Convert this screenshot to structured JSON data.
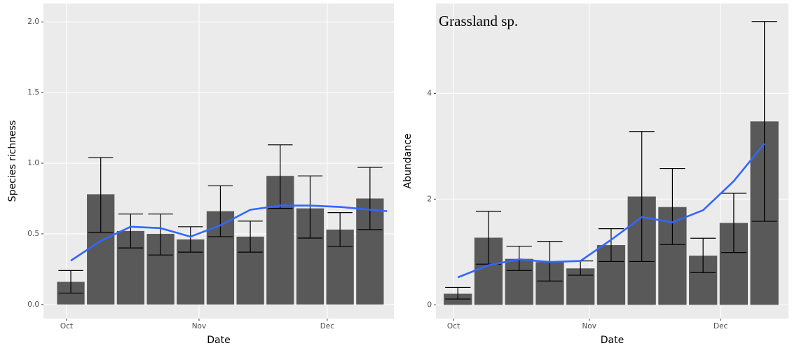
{
  "chart_data": [
    {
      "type": "bar",
      "xlabel": "Date",
      "ylabel": "Species richness",
      "color": "#595959",
      "error_color": "#000000",
      "grid": true,
      "x": [
        1,
        8,
        15,
        22,
        29,
        36,
        43,
        50,
        57,
        64,
        71
      ],
      "values": [
        0.16,
        0.78,
        0.52,
        0.5,
        0.46,
        0.66,
        0.48,
        0.91,
        0.68,
        0.53,
        0.75
      ],
      "lower": [
        0.08,
        0.51,
        0.4,
        0.35,
        0.37,
        0.48,
        0.37,
        0.68,
        0.47,
        0.41,
        0.53
      ],
      "upper": [
        0.24,
        1.04,
        0.64,
        0.64,
        0.55,
        0.84,
        0.59,
        1.13,
        0.91,
        0.65,
        0.97
      ],
      "smooth": {
        "color": "#3366ff",
        "x": [
          1,
          8,
          15,
          22,
          29,
          36,
          43,
          50,
          57,
          64,
          75
        ],
        "values": [
          0.31,
          0.45,
          0.55,
          0.54,
          0.48,
          0.56,
          0.67,
          0.7,
          0.7,
          0.69,
          0.66
        ]
      },
      "xlim": [
        -5.4,
        76.6
      ],
      "ylim": [
        -0.1,
        2.13
      ],
      "xticks": [
        {
          "value": 0,
          "label": "Oct"
        },
        {
          "value": 31,
          "label": "Nov"
        },
        {
          "value": 61,
          "label": "Dec"
        }
      ],
      "yticks": [
        {
          "value": 0,
          "label": "0.0"
        },
        {
          "value": 0.5,
          "label": "0.5"
        },
        {
          "value": 1,
          "label": "1.0"
        },
        {
          "value": 1.5,
          "label": "1.5"
        },
        {
          "value": 2,
          "label": "2.0"
        }
      ]
    },
    {
      "type": "bar",
      "xlabel": "Date",
      "ylabel": "Abundance",
      "annotation": "Grassland sp.",
      "color": "#595959",
      "error_color": "#000000",
      "grid": true,
      "x": [
        1,
        8,
        15,
        22,
        29,
        36,
        43,
        50,
        57,
        64,
        71
      ],
      "values": [
        0.21,
        1.27,
        0.87,
        0.81,
        0.69,
        1.13,
        2.05,
        1.85,
        0.93,
        1.55,
        3.47
      ],
      "lower": [
        0.11,
        0.77,
        0.65,
        0.45,
        0.56,
        0.82,
        0.82,
        1.14,
        0.61,
        0.99,
        1.58
      ],
      "upper": [
        0.33,
        1.77,
        1.11,
        1.2,
        0.83,
        1.44,
        3.28,
        2.58,
        1.26,
        2.11,
        5.36
      ],
      "smooth": {
        "color": "#3366ff",
        "x": [
          1,
          8,
          15,
          22,
          29,
          36,
          43,
          50,
          57,
          64,
          71
        ],
        "values": [
          0.52,
          0.75,
          0.86,
          0.81,
          0.83,
          1.23,
          1.66,
          1.56,
          1.79,
          2.34,
          3.05
        ]
      },
      "xlim": [
        -4,
        76.5
      ],
      "ylim": [
        -0.26,
        5.7
      ],
      "xticks": [
        {
          "value": 0,
          "label": "Oct"
        },
        {
          "value": 31,
          "label": "Nov"
        },
        {
          "value": 61,
          "label": "Dec"
        }
      ],
      "yticks": [
        0,
        2,
        4
      ]
    }
  ]
}
